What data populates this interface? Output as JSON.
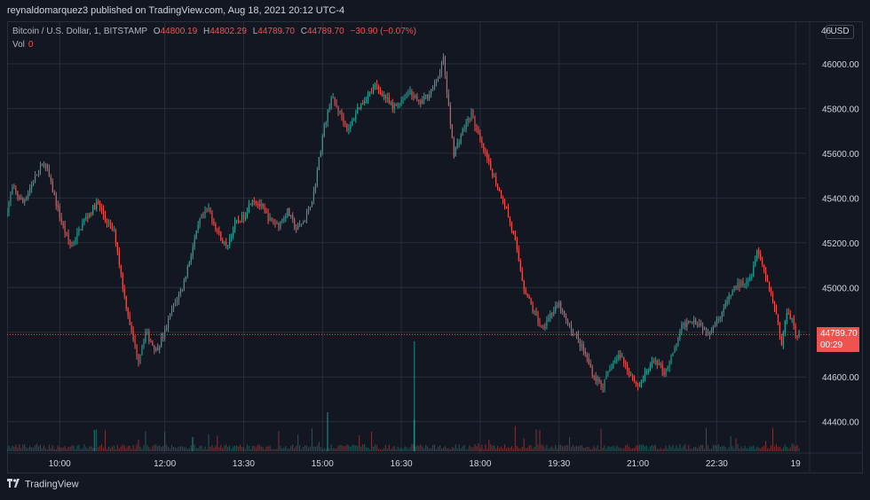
{
  "header": {
    "published": "reynaldomarquez3 published on TradingView.com, Aug 18, 2021 20:12 UTC-4"
  },
  "legend": {
    "symbol": "Bitcoin / U.S. Dollar, 1, BITSTAMP",
    "o_label": "O",
    "o": "44800.19",
    "h_label": "H",
    "h": "44802.29",
    "l_label": "L",
    "l": "44789.70",
    "c_label": "C",
    "c": "44789.70",
    "change": "−30.90 (−0.07%)",
    "vol_label": "Vol",
    "vol": "0"
  },
  "price_axis": {
    "currency": "USD",
    "top_tick_partial": "46"
  },
  "last_price": {
    "value": "44789.70",
    "countdown": "00:29"
  },
  "footer": {
    "brand": "TradingView"
  },
  "colors": {
    "background": "#131722",
    "up": "#26a69a",
    "down": "#ef5350",
    "grid": "#2a2e39",
    "text": "#d1d4dc"
  },
  "chart_data": {
    "type": "candlestick",
    "symbol": "Bitcoin / U.S. Dollar",
    "interval": "1",
    "exchange": "BITSTAMP",
    "y_ticks": [
      44400,
      44600,
      44800,
      45000,
      45200,
      45400,
      45600,
      45800,
      46000
    ],
    "y_tick_labels": [
      "44400.00",
      "44600.00",
      "45000.00",
      "45200.00",
      "45400.00",
      "45600.00",
      "45800.00",
      "46000.00"
    ],
    "ylim": [
      44260,
      46190
    ],
    "x_tick_labels": [
      "10:00",
      "12:00",
      "13:30",
      "15:00",
      "16:30",
      "18:00",
      "19:30",
      "21:00",
      "22:30",
      "19"
    ],
    "x_tick_minutes": [
      600,
      720,
      810,
      900,
      990,
      1080,
      1170,
      1260,
      1350,
      1440
    ],
    "x_range_minutes": [
      540,
      1452
    ],
    "price_path": [
      [
        540,
        45320
      ],
      [
        548,
        45440
      ],
      [
        560,
        45380
      ],
      [
        575,
        45500
      ],
      [
        585,
        45560
      ],
      [
        595,
        45420
      ],
      [
        605,
        45280
      ],
      [
        615,
        45180
      ],
      [
        630,
        45300
      ],
      [
        645,
        45380
      ],
      [
        655,
        45300
      ],
      [
        665,
        45240
      ],
      [
        675,
        44980
      ],
      [
        685,
        44780
      ],
      [
        692,
        44680
      ],
      [
        700,
        44800
      ],
      [
        712,
        44720
      ],
      [
        722,
        44800
      ],
      [
        730,
        44900
      ],
      [
        742,
        45000
      ],
      [
        752,
        45150
      ],
      [
        762,
        45300
      ],
      [
        772,
        45350
      ],
      [
        782,
        45250
      ],
      [
        792,
        45180
      ],
      [
        802,
        45280
      ],
      [
        812,
        45320
      ],
      [
        822,
        45400
      ],
      [
        832,
        45360
      ],
      [
        842,
        45300
      ],
      [
        852,
        45280
      ],
      [
        862,
        45340
      ],
      [
        872,
        45260
      ],
      [
        882,
        45300
      ],
      [
        892,
        45420
      ],
      [
        903,
        45700
      ],
      [
        912,
        45850
      ],
      [
        922,
        45780
      ],
      [
        932,
        45700
      ],
      [
        942,
        45800
      ],
      [
        952,
        45850
      ],
      [
        962,
        45900
      ],
      [
        972,
        45860
      ],
      [
        982,
        45800
      ],
      [
        992,
        45840
      ],
      [
        1002,
        45880
      ],
      [
        1012,
        45820
      ],
      [
        1022,
        45860
      ],
      [
        1032,
        45920
      ],
      [
        1040,
        46020
      ],
      [
        1046,
        45800
      ],
      [
        1052,
        45600
      ],
      [
        1062,
        45700
      ],
      [
        1072,
        45780
      ],
      [
        1082,
        45650
      ],
      [
        1092,
        45550
      ],
      [
        1102,
        45450
      ],
      [
        1112,
        45350
      ],
      [
        1122,
        45200
      ],
      [
        1132,
        45000
      ],
      [
        1142,
        44900
      ],
      [
        1152,
        44820
      ],
      [
        1162,
        44880
      ],
      [
        1172,
        44920
      ],
      [
        1182,
        44830
      ],
      [
        1192,
        44780
      ],
      [
        1202,
        44700
      ],
      [
        1212,
        44600
      ],
      [
        1222,
        44560
      ],
      [
        1232,
        44650
      ],
      [
        1242,
        44700
      ],
      [
        1252,
        44620
      ],
      [
        1262,
        44560
      ],
      [
        1272,
        44620
      ],
      [
        1282,
        44680
      ],
      [
        1292,
        44620
      ],
      [
        1302,
        44700
      ],
      [
        1312,
        44820
      ],
      [
        1322,
        44860
      ],
      [
        1332,
        44840
      ],
      [
        1342,
        44800
      ],
      [
        1352,
        44850
      ],
      [
        1362,
        44920
      ],
      [
        1372,
        45000
      ],
      [
        1382,
        45020
      ],
      [
        1392,
        45060
      ],
      [
        1398,
        45180
      ],
      [
        1404,
        45100
      ],
      [
        1412,
        45000
      ],
      [
        1420,
        44880
      ],
      [
        1426,
        44740
      ],
      [
        1432,
        44900
      ],
      [
        1438,
        44860
      ],
      [
        1442,
        44790
      ]
    ],
    "volume_spikes": [
      [
        1005,
        0.62
      ],
      [
        1005,
        0.18
      ],
      [
        906,
        0.22
      ],
      [
        752,
        0.08
      ],
      [
        640,
        0.12
      ]
    ],
    "last_price": 44789.7,
    "title": "",
    "xlabel": "",
    "ylabel": ""
  }
}
